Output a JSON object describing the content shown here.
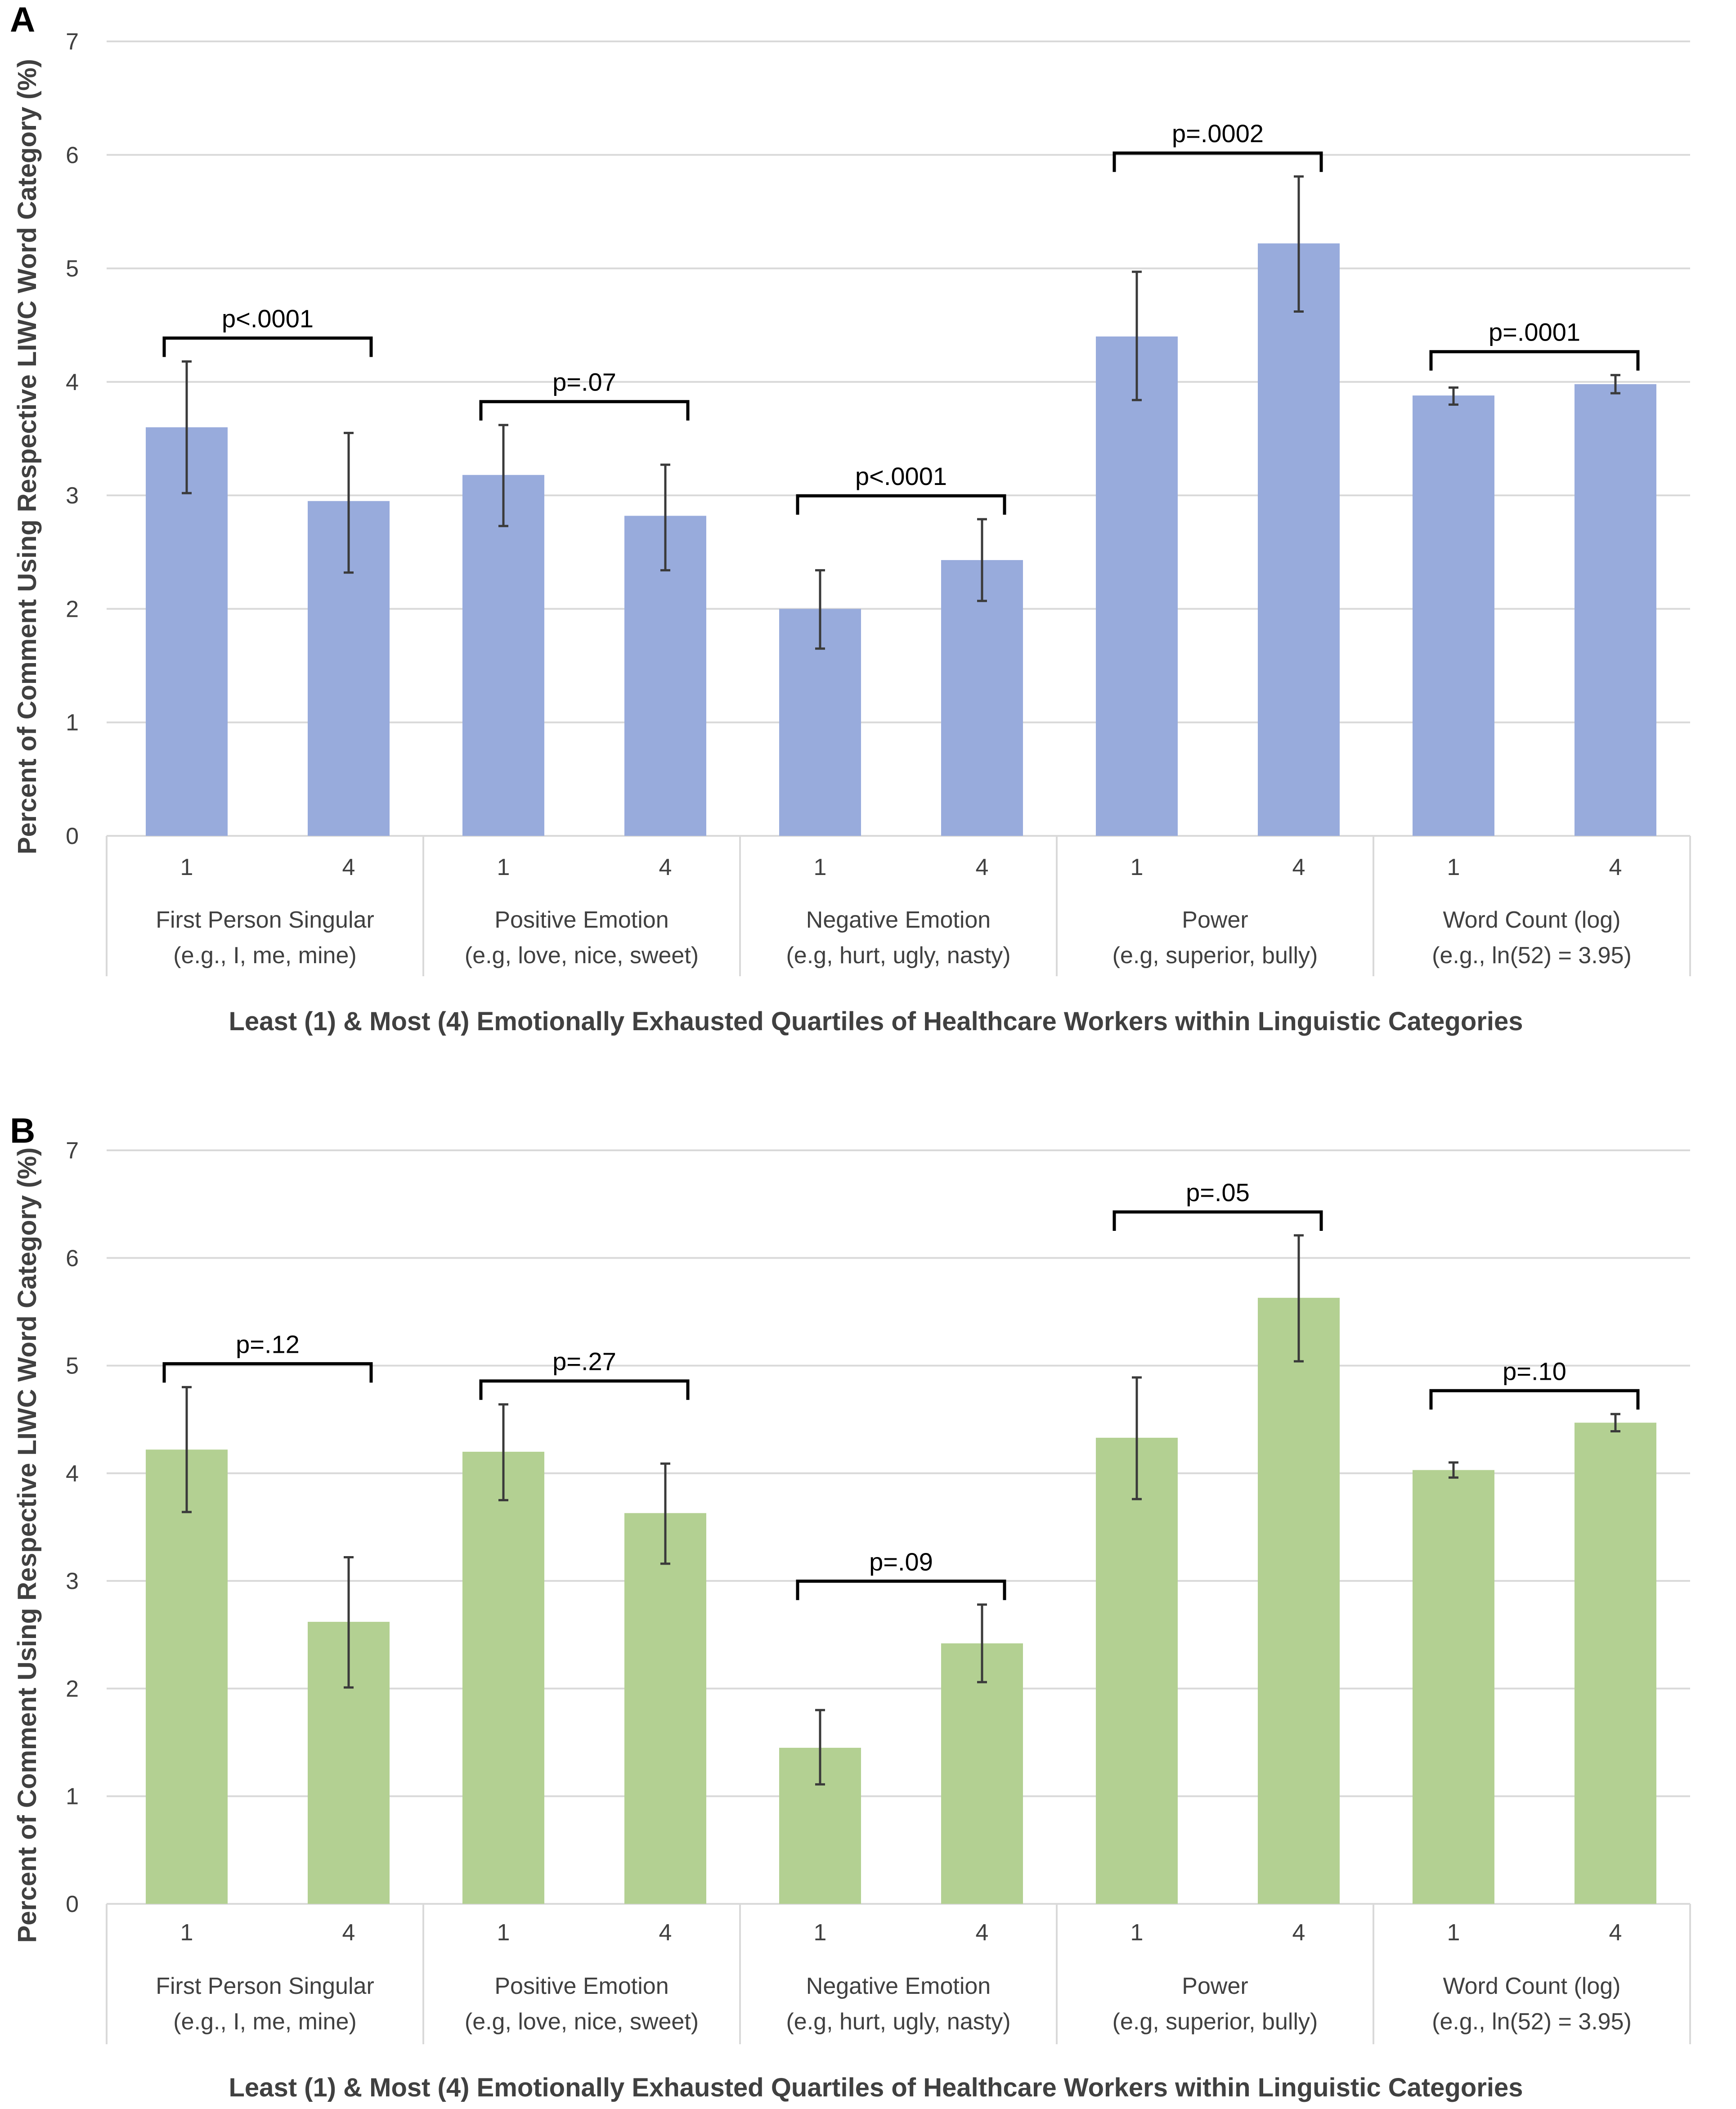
{
  "chart_data": [
    {
      "type": "bar",
      "panel_label": "A",
      "title": "",
      "ylabel": "Percent of Comment Using Respective LIWC Word Category (%)",
      "xlabel": "Least (1) & Most (4) Emotionally Exhausted Quartiles of Healthcare Workers within Linguistic Categories",
      "ylim": [
        0,
        7
      ],
      "yticks": [
        "0",
        "1",
        "2",
        "3",
        "4",
        "5",
        "6",
        "7"
      ],
      "grid": true,
      "color": "#98abdc",
      "quartile_labels": [
        "1",
        "4"
      ],
      "categories": [
        {
          "name": "First Person Singular",
          "examples": "(e.g., I, me, mine)",
          "values": [
            3.6,
            2.95
          ],
          "errors": [
            [
              3.02,
              4.18
            ],
            [
              2.32,
              3.55
            ]
          ],
          "p_value": "p<.0001"
        },
        {
          "name": "Positive Emotion",
          "examples": "(e.g, love, nice, sweet)",
          "values": [
            3.18,
            2.82
          ],
          "errors": [
            [
              2.73,
              3.62
            ],
            [
              2.34,
              3.27
            ]
          ],
          "p_value": "p=.07"
        },
        {
          "name": "Negative Emotion",
          "examples": "(e.g, hurt, ugly, nasty)",
          "values": [
            2.0,
            2.43
          ],
          "errors": [
            [
              1.65,
              2.34
            ],
            [
              2.07,
              2.79
            ]
          ],
          "p_value": "p<.0001"
        },
        {
          "name": "Power",
          "examples": "(e.g, superior, bully)",
          "values": [
            4.4,
            5.22
          ],
          "errors": [
            [
              3.84,
              4.97
            ],
            [
              4.62,
              5.81
            ]
          ],
          "p_value": "p=.0002"
        },
        {
          "name": "Word Count (log)",
          "examples": "(e.g., ln(52) = 3.95)",
          "values": [
            3.88,
            3.98
          ],
          "errors": [
            [
              3.8,
              3.95
            ],
            [
              3.9,
              4.06
            ]
          ],
          "p_value": "p=.0001"
        }
      ]
    },
    {
      "type": "bar",
      "panel_label": "B",
      "title": "",
      "ylabel": "Percent of Comment Using Respective LIWC Word Category (%)",
      "xlabel": "Least (1) & Most (4) Emotionally Exhausted Quartiles of Healthcare Workers within Linguistic Categories",
      "ylim": [
        0,
        7
      ],
      "yticks": [
        "0",
        "1",
        "2",
        "3",
        "4",
        "5",
        "6",
        "7"
      ],
      "grid": true,
      "color": "#b3d092",
      "quartile_labels": [
        "1",
        "4"
      ],
      "categories": [
        {
          "name": "First Person Singular",
          "examples": "(e.g., I, me, mine)",
          "values": [
            4.22,
            2.62
          ],
          "errors": [
            [
              3.64,
              4.8
            ],
            [
              2.01,
              3.22
            ]
          ],
          "p_value": "p=.12"
        },
        {
          "name": "Positive Emotion",
          "examples": "(e.g, love, nice, sweet)",
          "values": [
            4.2,
            3.63
          ],
          "errors": [
            [
              3.75,
              4.64
            ],
            [
              3.16,
              4.09
            ]
          ],
          "p_value": "p=.27"
        },
        {
          "name": "Negative Emotion",
          "examples": "(e.g, hurt, ugly, nasty)",
          "values": [
            1.45,
            2.42
          ],
          "errors": [
            [
              1.11,
              1.8
            ],
            [
              2.06,
              2.78
            ]
          ],
          "p_value": "p=.09"
        },
        {
          "name": "Power",
          "examples": "(e.g, superior, bully)",
          "values": [
            4.33,
            5.63
          ],
          "errors": [
            [
              3.76,
              4.89
            ],
            [
              5.04,
              6.21
            ]
          ],
          "p_value": "p=.05"
        },
        {
          "name": "Word Count (log)",
          "examples": "(e.g., ln(52) = 3.95)",
          "values": [
            4.03,
            4.47
          ],
          "errors": [
            [
              3.96,
              4.1
            ],
            [
              4.39,
              4.55
            ]
          ],
          "p_value": "p=.10"
        }
      ]
    }
  ]
}
